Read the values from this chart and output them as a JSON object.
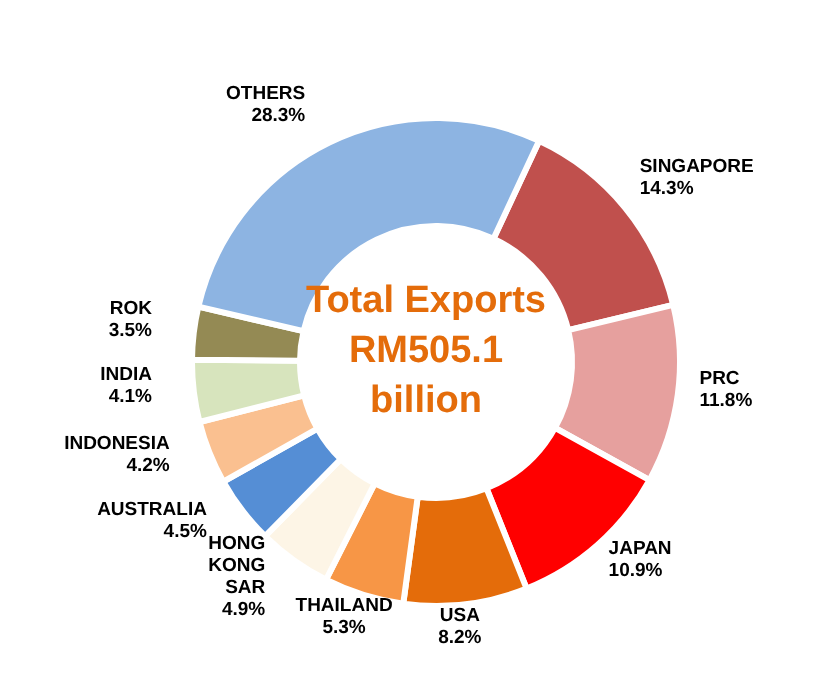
{
  "chart_data": {
    "type": "donut",
    "title": "Total Exports RM505.1 billion",
    "categories": [
      "SINGAPORE",
      "PRC",
      "JAPAN",
      "USA",
      "THAILAND",
      "HONG KONG SAR",
      "AUSTRALIA",
      "INDONESIA",
      "INDIA",
      "ROK",
      "OTHERS"
    ],
    "values": [
      14.3,
      11.8,
      10.9,
      8.2,
      5.3,
      4.9,
      4.5,
      4.2,
      4.1,
      3.5,
      28.3
    ],
    "value_labels": [
      "14.3%",
      "11.8%",
      "10.9%",
      "8.2%",
      "5.3%",
      "4.9%",
      "4.5%",
      "4.2%",
      "4.1%",
      "3.5%",
      "28.3%"
    ],
    "colors": [
      "#c0504d",
      "#e6a09e",
      "#ff0000",
      "#e46c0a",
      "#f79646",
      "#fdf5e6",
      "#558ed5",
      "#fac090",
      "#d7e4bd",
      "#948a54",
      "#8db4e2"
    ]
  }
}
